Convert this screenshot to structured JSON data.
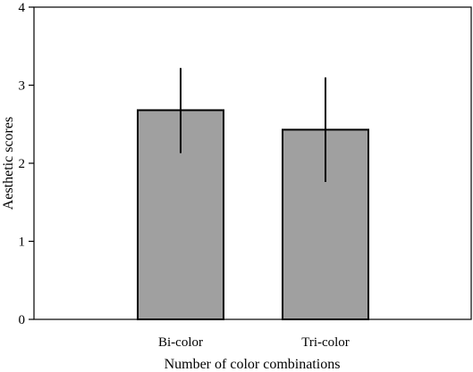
{
  "chart_data": {
    "type": "bar",
    "categories": [
      "Bi-color",
      "Tri-color"
    ],
    "values": [
      2.68,
      2.43
    ],
    "error_low": [
      2.13,
      1.76
    ],
    "error_high": [
      3.22,
      3.1
    ],
    "xlabel": "Number of color combinations",
    "ylabel": "Aesthetic scores",
    "ylim": [
      0,
      4
    ],
    "yticks": [
      "0",
      "1",
      "2",
      "3",
      "4"
    ],
    "grid": false,
    "bar_color": "#a0a0a0",
    "bar_edge_color": "#000000"
  }
}
